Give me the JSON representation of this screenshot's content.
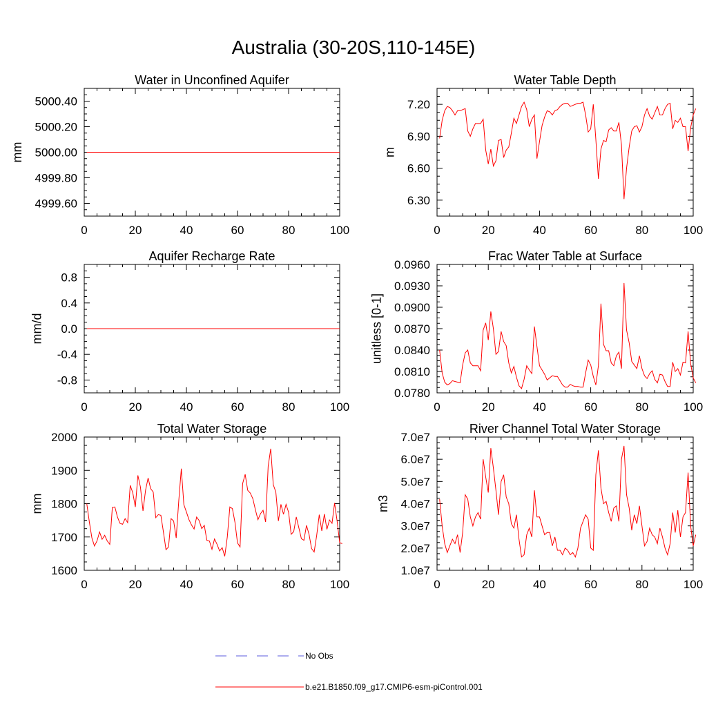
{
  "figure": {
    "title": "Australia (30-20S,110-145E)",
    "series_color": "#ff0000",
    "obs_color": "#5a5adc"
  },
  "legend": {
    "obs_label": "No Obs",
    "model_label": "b.e21.B1850.f09_g17.CMIP6-esm-piControl.001"
  },
  "chart_data": [
    {
      "id": "unconfined-aquifer",
      "type": "line",
      "title": "Water in Unconfined Aquifer",
      "ylabel": "mm",
      "xlim": [
        0,
        100
      ],
      "ylim": [
        4999.5,
        5000.5
      ],
      "xticks": [
        0,
        20,
        40,
        60,
        80,
        100
      ],
      "xtick_labels": [
        "0",
        "20",
        "40",
        "60",
        "80",
        "100"
      ],
      "yticks": [
        4999.6,
        4999.8,
        5000.0,
        5000.2,
        5000.4
      ],
      "ytick_labels": [
        "4999.60",
        "4999.80",
        "5000.00",
        "5000.20",
        "5000.40"
      ],
      "x": [
        1,
        100
      ],
      "y": [
        5000.0,
        5000.0
      ]
    },
    {
      "id": "water-table-depth",
      "type": "line",
      "title": "Water Table Depth",
      "ylabel": "m",
      "xlim": [
        0,
        100
      ],
      "ylim": [
        6.15,
        7.35
      ],
      "xticks": [
        0,
        20,
        40,
        60,
        80,
        100
      ],
      "xtick_labels": [
        "0",
        "20",
        "40",
        "60",
        "80",
        "100"
      ],
      "yticks": [
        6.3,
        6.6,
        6.9,
        7.2
      ],
      "ytick_labels": [
        "6.30",
        "6.60",
        "6.90",
        "7.20"
      ],
      "y": [
        6.88,
        7.05,
        7.14,
        7.18,
        7.17,
        7.14,
        7.1,
        7.14,
        7.14,
        7.15,
        7.16,
        6.95,
        6.9,
        6.97,
        7.02,
        7.02,
        7.02,
        7.06,
        6.77,
        6.64,
        6.78,
        6.62,
        6.67,
        6.86,
        6.87,
        6.7,
        6.77,
        6.8,
        6.93,
        7.07,
        7.02,
        7.1,
        7.18,
        7.22,
        7.15,
        6.99,
        7.06,
        7.1,
        6.69,
        6.85,
        7.0,
        7.08,
        7.14,
        7.13,
        7.1,
        7.14,
        7.15,
        7.18,
        7.2,
        7.21,
        7.21,
        7.18,
        7.19,
        7.2,
        7.21,
        7.21,
        7.22,
        7.1,
        6.94,
        6.97,
        7.2,
        6.87,
        6.5,
        6.78,
        6.86,
        6.85,
        6.96,
        6.98,
        6.95,
        6.95,
        7.03,
        6.82,
        6.31,
        6.6,
        6.8,
        6.95,
        6.99,
        7.0,
        6.94,
        6.99,
        7.1,
        7.16,
        7.09,
        7.06,
        7.12,
        7.18,
        7.1,
        7.1,
        7.16,
        7.2,
        7.21,
        6.97,
        7.05,
        7.03,
        7.07,
        6.99,
        6.99,
        6.76,
        6.98,
        7.1,
        7.16
      ]
    },
    {
      "id": "aquifer-recharge",
      "type": "line",
      "title": "Aquifer Recharge Rate",
      "ylabel": "mm/d",
      "xlim": [
        0,
        100
      ],
      "ylim": [
        -1.0,
        1.0
      ],
      "xticks": [
        0,
        20,
        40,
        60,
        80,
        100
      ],
      "xtick_labels": [
        "0",
        "20",
        "40",
        "60",
        "80",
        "100"
      ],
      "yticks": [
        -0.8,
        -0.4,
        0.0,
        0.4,
        0.8
      ],
      "ytick_labels": [
        "-0.8",
        "-0.4",
        "0.0",
        "0.4",
        "0.8"
      ],
      "x": [
        1,
        100
      ],
      "y": [
        0.0,
        0.0
      ]
    },
    {
      "id": "frac-water-table",
      "type": "line",
      "title": "Frac Water Table at Surface",
      "ylabel": "unitless [0-1]",
      "xlim": [
        0,
        100
      ],
      "ylim": [
        0.078,
        0.096
      ],
      "xticks": [
        0,
        20,
        40,
        60,
        80,
        100
      ],
      "xtick_labels": [
        "0",
        "20",
        "40",
        "60",
        "80",
        "100"
      ],
      "yticks": [
        0.078,
        0.081,
        0.084,
        0.087,
        0.09,
        0.093,
        0.096
      ],
      "ytick_labels": [
        "0.0780",
        "0.0810",
        "0.0840",
        "0.0870",
        "0.0900",
        "0.0930",
        "0.0960"
      ],
      "y": [
        0.084,
        0.0808,
        0.0795,
        0.0791,
        0.0793,
        0.0797,
        0.0796,
        0.0795,
        0.0794,
        0.0819,
        0.0836,
        0.084,
        0.0822,
        0.0818,
        0.0818,
        0.0818,
        0.0811,
        0.0868,
        0.0878,
        0.0854,
        0.0894,
        0.087,
        0.0834,
        0.0838,
        0.0866,
        0.0852,
        0.0846,
        0.0822,
        0.0808,
        0.0817,
        0.0802,
        0.079,
        0.0786,
        0.0799,
        0.0818,
        0.0812,
        0.0807,
        0.0873,
        0.0845,
        0.0818,
        0.0812,
        0.0806,
        0.0798,
        0.0801,
        0.0804,
        0.0803,
        0.0803,
        0.0797,
        0.0791,
        0.0788,
        0.0788,
        0.0792,
        0.079,
        0.0789,
        0.0789,
        0.0788,
        0.0788,
        0.0808,
        0.0826,
        0.0819,
        0.0803,
        0.0791,
        0.0818,
        0.0905,
        0.0848,
        0.0839,
        0.0839,
        0.0822,
        0.0818,
        0.0832,
        0.0837,
        0.0814,
        0.0934,
        0.0868,
        0.085,
        0.0824,
        0.0819,
        0.0814,
        0.0832,
        0.0814,
        0.0804,
        0.08,
        0.0807,
        0.0811,
        0.0799,
        0.0794,
        0.0806,
        0.0805,
        0.0796,
        0.0789,
        0.0789,
        0.0823,
        0.081,
        0.0814,
        0.0805,
        0.0823,
        0.0822,
        0.0866,
        0.0821,
        0.0801,
        0.0794
      ]
    },
    {
      "id": "total-water-storage",
      "type": "line",
      "title": "Total Water Storage",
      "ylabel": "mm",
      "xlim": [
        0,
        100
      ],
      "ylim": [
        1600,
        2000
      ],
      "xticks": [
        0,
        20,
        40,
        60,
        80,
        100
      ],
      "xtick_labels": [
        "0",
        "20",
        "40",
        "60",
        "80",
        "100"
      ],
      "yticks": [
        1600,
        1700,
        1800,
        1900,
        2000
      ],
      "ytick_labels": [
        "1600",
        "1700",
        "1800",
        "1900",
        "2000"
      ],
      "y": [
        1800,
        1745,
        1697,
        1673,
        1688,
        1715,
        1693,
        1705,
        1688,
        1678,
        1789,
        1790,
        1760,
        1741,
        1738,
        1755,
        1743,
        1855,
        1833,
        1790,
        1885,
        1850,
        1778,
        1840,
        1877,
        1845,
        1835,
        1758,
        1767,
        1765,
        1715,
        1662,
        1670,
        1755,
        1748,
        1697,
        1808,
        1905,
        1797,
        1775,
        1752,
        1736,
        1724,
        1760,
        1749,
        1725,
        1735,
        1690,
        1688,
        1663,
        1694,
        1678,
        1658,
        1668,
        1642,
        1700,
        1790,
        1785,
        1744,
        1682,
        1670,
        1860,
        1888,
        1840,
        1832,
        1815,
        1782,
        1752,
        1770,
        1780,
        1745,
        1912,
        1965,
        1857,
        1835,
        1748,
        1798,
        1768,
        1798,
        1774,
        1708,
        1716,
        1760,
        1728,
        1695,
        1690,
        1735,
        1708,
        1665,
        1655,
        1705,
        1767,
        1718,
        1769,
        1723,
        1751,
        1741,
        1802,
        1747,
        1683,
        1680
      ]
    },
    {
      "id": "river-channel-storage",
      "type": "line",
      "title": "River Channel Total Water Storage",
      "ylabel": "m3",
      "xlim": [
        0,
        100
      ],
      "ylim": [
        10000000,
        70000000
      ],
      "xticks": [
        0,
        20,
        40,
        60,
        80,
        100
      ],
      "xtick_labels": [
        "0",
        "20",
        "40",
        "60",
        "80",
        "100"
      ],
      "yticks": [
        10000000,
        20000000,
        30000000,
        40000000,
        50000000,
        60000000,
        70000000
      ],
      "ytick_labels": [
        "1.0e7",
        "2.0e7",
        "3.0e7",
        "4.0e7",
        "5.0e7",
        "6.0e7",
        "7.0e7"
      ],
      "y": [
        42000000,
        30000000,
        22000000,
        18000000,
        21000000,
        24000000,
        22000000,
        26000000,
        18000000,
        27000000,
        44000000,
        42000000,
        34000000,
        30000000,
        34000000,
        36000000,
        33000000,
        60000000,
        52000000,
        45000000,
        65000000,
        56000000,
        46000000,
        35000000,
        50000000,
        53000000,
        43000000,
        40000000,
        31000000,
        29000000,
        35000000,
        24000000,
        16000000,
        17000000,
        26000000,
        29000000,
        25000000,
        46000000,
        34000000,
        34000000,
        30000000,
        26000000,
        27000000,
        27000000,
        21000000,
        25000000,
        19000000,
        19000000,
        17000000,
        20000000,
        19000000,
        17000000,
        18000000,
        16000000,
        20000000,
        29000000,
        32000000,
        35000000,
        33000000,
        20000000,
        19000000,
        53000000,
        64000000,
        47000000,
        40000000,
        41000000,
        36000000,
        32000000,
        38000000,
        39000000,
        32000000,
        60000000,
        66000000,
        44000000,
        38000000,
        28000000,
        35000000,
        31000000,
        39000000,
        30000000,
        21000000,
        23000000,
        29000000,
        26000000,
        25000000,
        22000000,
        29000000,
        25000000,
        20000000,
        17000000,
        22000000,
        36000000,
        27000000,
        37000000,
        25000000,
        34000000,
        36000000,
        54000000,
        30000000,
        21000000,
        26000000
      ]
    }
  ]
}
